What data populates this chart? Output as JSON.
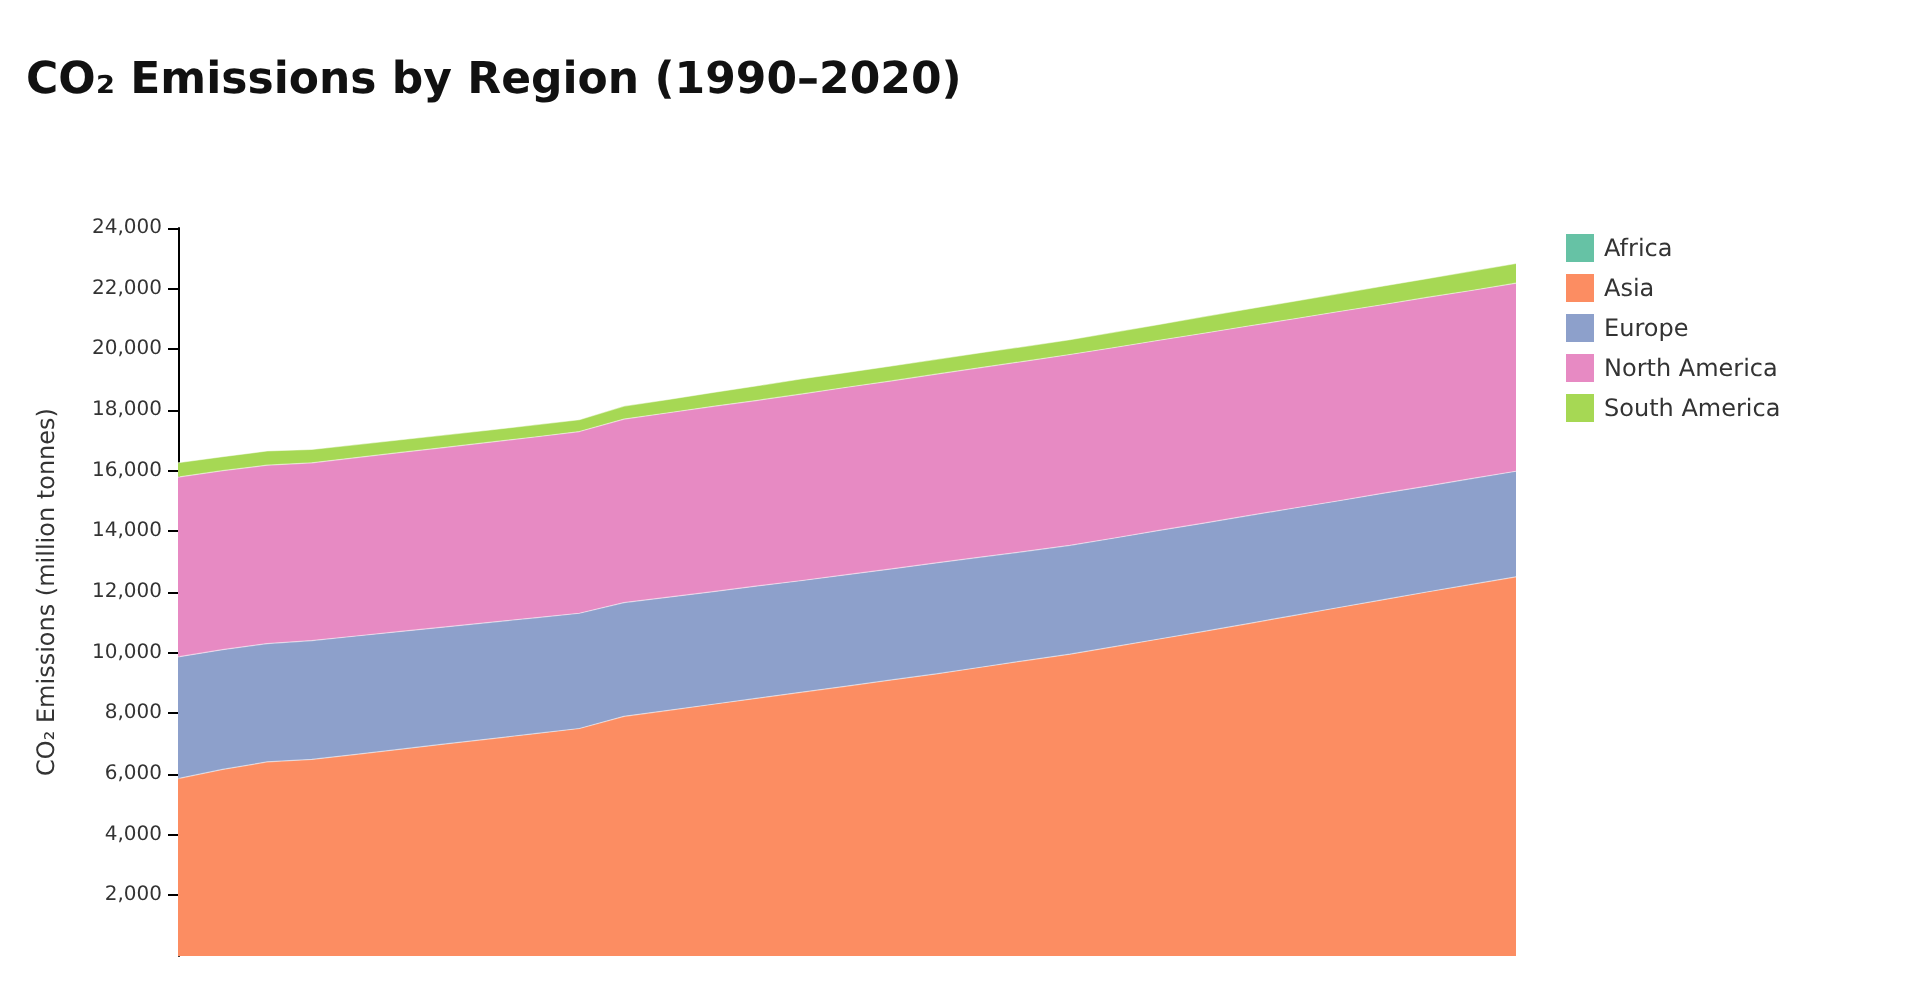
{
  "chart_data": {
    "type": "area",
    "title": "CO₂ Emissions by Region (1990–2020)",
    "ylabel": "CO₂ Emissions (million tonnes)",
    "categories": [
      null,
      null,
      null,
      null,
      null,
      null,
      null,
      null,
      null,
      null,
      null,
      null,
      null,
      null,
      null,
      null,
      null,
      null,
      null,
      null,
      null,
      null,
      null,
      null,
      null,
      null,
      null,
      null,
      null,
      null,
      null
    ],
    "stacked": true,
    "ylim": [
      0,
      24000
    ],
    "yticks": [
      {
        "value": 2000,
        "label": "2,000"
      },
      {
        "value": 4000,
        "label": "4,000"
      },
      {
        "value": 6000,
        "label": "6,000"
      },
      {
        "value": 8000,
        "label": "8,000"
      },
      {
        "value": 10000,
        "label": "10,000"
      },
      {
        "value": 12000,
        "label": "12,000"
      },
      {
        "value": 14000,
        "label": "14,000"
      },
      {
        "value": 16000,
        "label": "16,000"
      },
      {
        "value": 18000,
        "label": "18,000"
      },
      {
        "value": 20000,
        "label": "20,000"
      },
      {
        "value": 22000,
        "label": "22,000"
      },
      {
        "value": 24000,
        "label": "24,000"
      }
    ],
    "grid": false,
    "legend": "top right",
    "series": [
      {
        "name": "Africa",
        "color": "#66c2a5",
        "values": [
          null,
          null,
          null,
          null,
          null,
          null,
          null,
          null,
          null,
          null,
          null,
          null,
          null,
          null,
          null,
          null,
          null,
          null,
          null,
          null,
          null,
          null,
          null,
          null,
          null,
          null,
          null,
          null,
          null,
          null,
          null
        ]
      },
      {
        "name": "Asia",
        "color": "#fc8d62",
        "values": [
          5850,
          6150,
          6400,
          6480,
          6650,
          6820,
          6990,
          7160,
          7330,
          7500,
          7900,
          8100,
          8300,
          8500,
          8700,
          8900,
          9100,
          9300,
          9520,
          9740,
          9950,
          10200,
          10450,
          10700,
          10960,
          11220,
          11480,
          11740,
          12000,
          12250,
          12500
        ]
      },
      {
        "name": "Europe",
        "color": "#8da0cb",
        "values": [
          4010,
          3950,
          3900,
          3920,
          3900,
          3880,
          3860,
          3840,
          3820,
          3800,
          3750,
          3730,
          3710,
          3700,
          3680,
          3670,
          3660,
          3660,
          3630,
          3600,
          3590,
          3580,
          3580,
          3570,
          3560,
          3540,
          3520,
          3510,
          3490,
          3490,
          3480
        ]
      },
      {
        "name": "North America",
        "color": "#e78ac3",
        "values": [
          5930,
          5900,
          5880,
          5860,
          5880,
          5900,
          5920,
          5940,
          5960,
          5990,
          6050,
          6080,
          6110,
          6120,
          6150,
          6180,
          6200,
          6220,
          6250,
          6270,
          6290,
          6280,
          6270,
          6260,
          6250,
          6240,
          6240,
          6220,
          6220,
          6200,
          6200
        ]
      },
      {
        "name": "South America",
        "color": "#a6d854",
        "values": [
          470,
          460,
          470,
          440,
          430,
          420,
          410,
          400,
          400,
          390,
          430,
          440,
          460,
          480,
          500,
          490,
          490,
          490,
          490,
          490,
          490,
          510,
          520,
          550,
          560,
          580,
          590,
          610,
          620,
          640,
          650
        ]
      }
    ]
  }
}
